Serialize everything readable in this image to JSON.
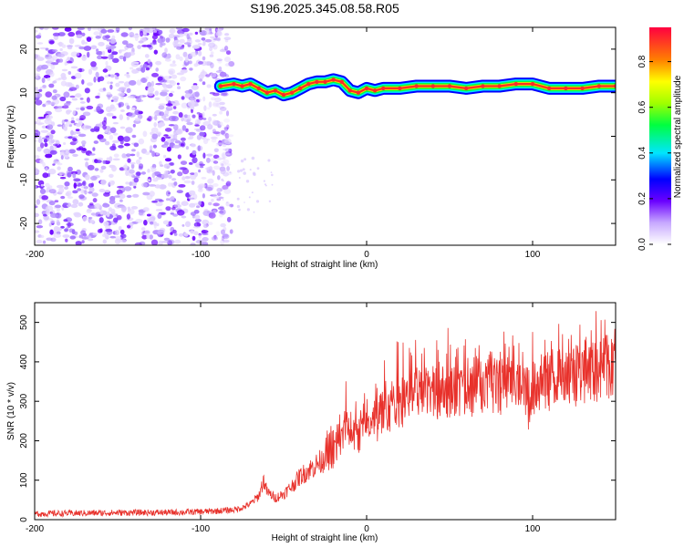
{
  "title": "S196.2025.345.08.58.R05",
  "chart_data": [
    {
      "type": "heatmap",
      "title": "S196.2025.345.08.58.R05",
      "xlabel": "Height of straight line (km)",
      "ylabel": "Frequency (Hz)",
      "xlim": [
        -200,
        150
      ],
      "ylim": [
        -25,
        25
      ],
      "xticks": [
        -200,
        -100,
        0,
        100
      ],
      "yticks": [
        -20,
        -10,
        0,
        10,
        20
      ],
      "colorbar": {
        "label": "Normalized spectral amplitude",
        "range": [
          0.0,
          0.95
        ],
        "ticks": [
          0.0,
          0.2,
          0.4,
          0.6,
          0.8
        ]
      },
      "noise_region_x": [
        -200,
        -88
      ],
      "ridge": [
        {
          "x": -88,
          "y": 11.5
        },
        {
          "x": -80,
          "y": 12
        },
        {
          "x": -75,
          "y": 11.5
        },
        {
          "x": -70,
          "y": 12
        },
        {
          "x": -65,
          "y": 11
        },
        {
          "x": -60,
          "y": 10
        },
        {
          "x": -55,
          "y": 10.5
        },
        {
          "x": -50,
          "y": 9.5
        },
        {
          "x": -45,
          "y": 10
        },
        {
          "x": -40,
          "y": 11
        },
        {
          "x": -35,
          "y": 12
        },
        {
          "x": -30,
          "y": 12.5
        },
        {
          "x": -25,
          "y": 12.5
        },
        {
          "x": -20,
          "y": 13
        },
        {
          "x": -15,
          "y": 12.5
        },
        {
          "x": -10,
          "y": 10.5
        },
        {
          "x": -5,
          "y": 10
        },
        {
          "x": 0,
          "y": 11
        },
        {
          "x": 5,
          "y": 10.5
        },
        {
          "x": 10,
          "y": 11
        },
        {
          "x": 20,
          "y": 11
        },
        {
          "x": 30,
          "y": 11.5
        },
        {
          "x": 40,
          "y": 11.5
        },
        {
          "x": 50,
          "y": 11.5
        },
        {
          "x": 60,
          "y": 11
        },
        {
          "x": 70,
          "y": 11.5
        },
        {
          "x": 80,
          "y": 11.5
        },
        {
          "x": 90,
          "y": 12
        },
        {
          "x": 100,
          "y": 12
        },
        {
          "x": 110,
          "y": 11
        },
        {
          "x": 120,
          "y": 11
        },
        {
          "x": 130,
          "y": 11
        },
        {
          "x": 140,
          "y": 11.5
        },
        {
          "x": 150,
          "y": 11.5
        }
      ]
    },
    {
      "type": "line",
      "xlabel": "Height of straight line (km)",
      "ylabel": "SNR (10 * v/v)",
      "xlim": [
        -200,
        150
      ],
      "ylim": [
        0,
        550
      ],
      "xticks": [
        -200,
        -100,
        0,
        100
      ],
      "yticks": [
        0,
        100,
        200,
        300,
        400,
        500
      ],
      "color": "#e8312b",
      "series": [
        {
          "name": "SNR",
          "x": [
            -200,
            -180,
            -160,
            -140,
            -120,
            -100,
            -90,
            -80,
            -75,
            -70,
            -65,
            -62,
            -60,
            -55,
            -50,
            -45,
            -40,
            -35,
            -30,
            -25,
            -20,
            -15,
            -12,
            -10,
            -5,
            0,
            5,
            10,
            15,
            20,
            25,
            30,
            40,
            50,
            60,
            70,
            80,
            90,
            95,
            98,
            100,
            105,
            110,
            120,
            130,
            140,
            150
          ],
          "y": [
            15,
            16,
            17,
            18,
            18,
            20,
            22,
            25,
            30,
            40,
            60,
            100,
            70,
            55,
            65,
            85,
            110,
            125,
            140,
            155,
            165,
            200,
            240,
            210,
            215,
            230,
            245,
            270,
            285,
            300,
            300,
            310,
            320,
            325,
            320,
            330,
            340,
            330,
            320,
            280,
            330,
            340,
            345,
            360,
            370,
            375,
            380
          ]
        }
      ]
    }
  ]
}
